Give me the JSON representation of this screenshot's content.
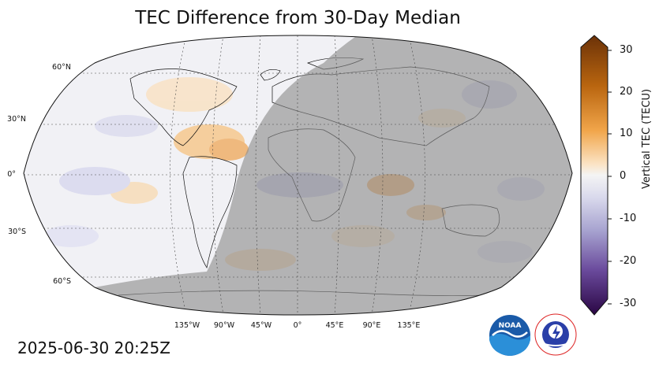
{
  "title": "TEC Difference from 30-Day Median",
  "timestamp": "2025-06-30 20:25Z",
  "lat_labels": [
    "60°N",
    "30°N",
    "0°",
    "30°S",
    "60°S"
  ],
  "lon_labels": [
    "135°W",
    "90°W",
    "45°W",
    "0°",
    "45°E",
    "90°E",
    "135°E"
  ],
  "colorbar": {
    "label": "Vertical TEC (TECU)",
    "ticks": [
      "30",
      "20",
      "10",
      "0",
      "-10",
      "-20",
      "-30"
    ],
    "min": -30,
    "max": 30,
    "high_color": "#7a3d0a",
    "mid_color": "#f4f4f4",
    "low_color": "#2e0a4a"
  },
  "logos": {
    "noaa_text": "NOAA",
    "nws_text": "NATIONAL WEATHER SERVICE"
  },
  "colors": {
    "night_shade": "#8c8c8c",
    "positive": "#f3b56f",
    "negative": "#a6a6d6",
    "background": "#f0f0f4"
  }
}
